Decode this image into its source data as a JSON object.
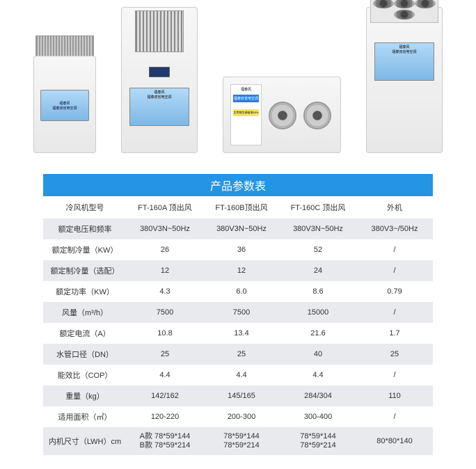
{
  "table": {
    "title": "产品参数表",
    "header": {
      "label": "冷风机型号",
      "c1": "FT-160A 顶出风",
      "c2": "FT-160B顶出风",
      "c3": "FT-160C 顶出风",
      "c4": "外机"
    },
    "rows": [
      {
        "label": "额定电压和频率",
        "c1": "380V3N~50Hz",
        "c2": "380V3N~50Hz",
        "c3": "380V3N~50Hz",
        "c4": "380V3~/50Hz"
      },
      {
        "label": "额定制冷量（KW）",
        "c1": "26",
        "c2": "36",
        "c3": "52",
        "c4": "/"
      },
      {
        "label": "额定制冷量（选配）",
        "c1": "12",
        "c2": "12",
        "c3": "24",
        "c4": "/"
      },
      {
        "label": "额定功率（KW）",
        "c1": "4.3",
        "c2": "6.0",
        "c3": "8.6",
        "c4": "0.79"
      },
      {
        "label": "风量（m³/h）",
        "c1": "7500",
        "c2": "7500",
        "c3": "15000",
        "c4": "/"
      },
      {
        "label": "额定电流（A）",
        "c1": "10.8",
        "c2": "13.4",
        "c3": "21.6",
        "c4": "1.7"
      },
      {
        "label": "水管口径（DN）",
        "c1": "25",
        "c2": "25",
        "c3": "40",
        "c4": "25"
      },
      {
        "label": "能效比（COP）",
        "c1": "4.4",
        "c2": "4.4",
        "c3": "4.4",
        "c4": "/"
      },
      {
        "label": "重量（kg）",
        "c1": "142/162",
        "c2": "145/165",
        "c3": "284/304",
        "c4": "110"
      },
      {
        "label": "适用面积（㎡）",
        "c1": "120-220",
        "c2": "200-300",
        "c3": "300-400",
        "c4": "/"
      }
    ],
    "lastRow": {
      "label": "内机尺寸（LWH）cm",
      "c1a": "A款 78*59*144",
      "c1b": "B款 78*59*214",
      "c2a": "78*59*144",
      "c2b": "78*59*214",
      "c3a": "78*59*144",
      "c3b": "78*59*214",
      "c4": "80*80*140"
    }
  },
  "panel": {
    "brand": "福泰风",
    "slogan1": "福泰双省电空调",
    "slogan2": "比传统空调省电50%"
  }
}
